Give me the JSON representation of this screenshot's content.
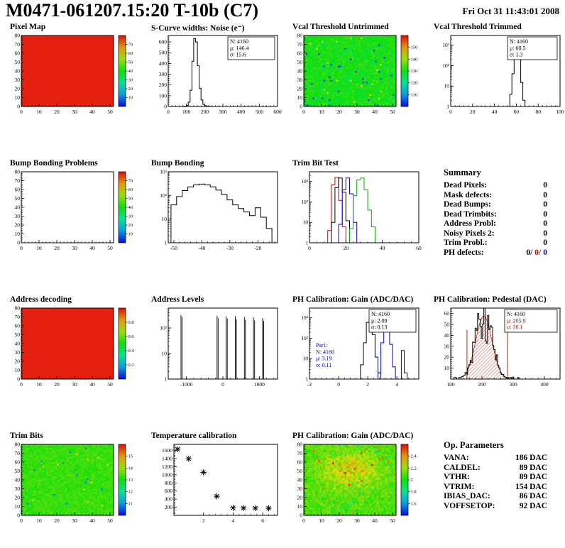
{
  "header": {
    "title": "M0471-061207.15:20 T-10b (C7)",
    "date": "Fri Oct 31 11:43:01 2008"
  },
  "summary_panel": {
    "title": "Summary",
    "rows": [
      {
        "label": "Dead Pixels:",
        "value": "0"
      },
      {
        "label": "Mask defects:",
        "value": "0"
      },
      {
        "label": "Dead Bumps:",
        "value": "0"
      },
      {
        "label": "Dead Trimbits:",
        "value": "0"
      },
      {
        "label": "Address Probl:",
        "value": "0"
      },
      {
        "label": "Noisy Pixels 2:",
        "value": "0"
      },
      {
        "label": "Trim Probl.:",
        "value": "0"
      }
    ],
    "ph_defects": {
      "label": "PH defects:",
      "parts": [
        {
          "text": "0/",
          "color": "#000000"
        },
        {
          "text": "0/",
          "color": "#cc0000"
        },
        {
          "text": "0",
          "color": "#0000cc"
        }
      ]
    }
  },
  "op_params_panel": {
    "title": "Op. Parameters",
    "rows": [
      {
        "label": "VANA:",
        "value": "186 DAC"
      },
      {
        "label": "CALDEL:",
        "value": "89 DAC"
      },
      {
        "label": "VTHR:",
        "value": "89 DAC"
      },
      {
        "label": "VTRIM:",
        "value": "154 DAC"
      },
      {
        "label": "IBIAS_DAC:",
        "value": "86 DAC"
      },
      {
        "label": "VOFFSETOP:",
        "value": "92 DAC"
      }
    ]
  },
  "chart_data": [
    {
      "id": "pixel_map",
      "title": "Pixel Map",
      "type": "heatmap",
      "fill": "solid",
      "color": "#e52010",
      "x_range": [
        0,
        52
      ],
      "x_ticks": [
        0,
        10,
        20,
        30,
        40,
        50
      ],
      "y_range": [
        0,
        80
      ],
      "y_ticks": [
        0,
        10,
        20,
        30,
        40,
        50,
        60,
        70,
        80
      ],
      "colorbar": {
        "ticks": [
          "10",
          "20",
          "30",
          "40",
          "50",
          "60",
          "70"
        ]
      }
    },
    {
      "id": "scurve",
      "title": "S-Curve widths: Noise (e⁻)",
      "type": "hist",
      "x_range": [
        0,
        600
      ],
      "x_ticks": [
        0,
        100,
        200,
        300,
        400,
        500,
        600
      ],
      "y_range": [
        0,
        660
      ],
      "y_ticks": [
        0,
        100,
        200,
        300,
        400,
        500,
        600
      ],
      "series": [
        {
          "color": "#000000",
          "points": [
            [
              85,
              1
            ],
            [
              95,
              3
            ],
            [
              105,
              10
            ],
            [
              115,
              40
            ],
            [
              125,
              150
            ],
            [
              135,
              420
            ],
            [
              145,
              630
            ],
            [
              155,
              600
            ],
            [
              165,
              380
            ],
            [
              175,
              170
            ],
            [
              185,
              60
            ],
            [
              195,
              20
            ],
            [
              205,
              7
            ],
            [
              215,
              2
            ],
            [
              225,
              1
            ]
          ]
        }
      ],
      "stats": [
        {
          "x": 120,
          "y": 6,
          "w": 66,
          "h": 32,
          "border": true,
          "lines": [
            {
              "t": "N: 4160"
            },
            {
              "t": "μ: 146.4"
            },
            {
              "t": "σ: 15.6"
            }
          ]
        }
      ]
    },
    {
      "id": "vcal_untrimmed",
      "title": "Vcal Threshold Untrimmed",
      "type": "heatmap",
      "fill": "noise",
      "noise": {
        "center": 0.5,
        "spread": 0.1,
        "low": 0.08,
        "low_frac": 0.02,
        "high": 0.72,
        "high_frac": 0.01,
        "cells": [
          52,
          40
        ]
      },
      "x_range": [
        0,
        52
      ],
      "x_ticks": [
        0,
        10,
        20,
        30,
        40,
        50
      ],
      "y_range": [
        0,
        80
      ],
      "y_ticks": [
        0,
        10,
        20,
        30,
        40,
        50,
        60,
        70,
        80
      ],
      "colorbar": {
        "ticks": [
          "110",
          "120",
          "130",
          "140",
          "150"
        ]
      }
    },
    {
      "id": "vcal_trimmed",
      "title": "Vcal Threshold Trimmed",
      "type": "hist",
      "ylog": true,
      "x_range": [
        0,
        100
      ],
      "x_ticks": [
        0,
        20,
        40,
        60,
        80,
        100
      ],
      "y_range": [
        1,
        3000
      ],
      "y_ticks_log": [
        [
          1,
          "1"
        ],
        [
          10,
          "10"
        ],
        [
          100,
          "10²"
        ],
        [
          1000,
          "10³"
        ]
      ],
      "series": [
        {
          "color": "#000000",
          "points": [
            [
              53,
              1
            ],
            [
              55,
              4
            ],
            [
              57,
              40
            ],
            [
              59,
              700
            ],
            [
              61,
              1800
            ],
            [
              63,
              300
            ],
            [
              65,
              15
            ],
            [
              67,
              2
            ]
          ]
        }
      ],
      "stats": [
        {
          "x": 116,
          "y": 6,
          "w": 70,
          "h": 32,
          "border": true,
          "lines": [
            {
              "t": "N: 4160"
            },
            {
              "t": "μ: 60.5"
            },
            {
              "t": "σ: 1.3"
            }
          ]
        }
      ]
    },
    {
      "id": "bbp",
      "title": "Bump Bonding Problems",
      "type": "heatmap",
      "fill": "empty",
      "x_range": [
        0,
        52
      ],
      "x_ticks": [
        0,
        10,
        20,
        30,
        40,
        50
      ],
      "y_range": [
        0,
        80
      ],
      "y_ticks": [
        0,
        10,
        20,
        30,
        40,
        50,
        60,
        70,
        80
      ],
      "colorbar": {
        "ticks": [
          "10",
          "20",
          "30",
          "40",
          "50",
          "60",
          "70"
        ]
      }
    },
    {
      "id": "bump",
      "title": "Bump Bonding",
      "type": "hist",
      "ylog": true,
      "x_range": [
        -52,
        -13
      ],
      "x_ticks": [
        -50,
        -40,
        -30,
        -20
      ],
      "y_range": [
        1,
        1000
      ],
      "y_ticks_log": [
        [
          1,
          "1"
        ],
        [
          10,
          "10"
        ],
        [
          100,
          "10²"
        ],
        [
          1000,
          "10³"
        ]
      ],
      "series": [
        {
          "color": "#000000",
          "points": [
            [
              -50,
              40
            ],
            [
              -48,
              90
            ],
            [
              -46,
              160
            ],
            [
              -44,
              230
            ],
            [
              -42,
              280
            ],
            [
              -40,
              300
            ],
            [
              -38,
              280
            ],
            [
              -36,
              230
            ],
            [
              -34,
              170
            ],
            [
              -32,
              110
            ],
            [
              -30,
              65
            ],
            [
              -28,
              40
            ],
            [
              -26,
              28
            ],
            [
              -24,
              20
            ],
            [
              -22,
              14
            ],
            [
              -20,
              30
            ],
            [
              -18,
              12
            ],
            [
              -16,
              4
            ]
          ]
        }
      ]
    },
    {
      "id": "trimbit",
      "title": "Trim Bit Test",
      "type": "hist",
      "ylog": true,
      "x_range": [
        0,
        60
      ],
      "x_ticks": [
        0,
        20,
        40,
        60
      ],
      "y_range": [
        1,
        3000
      ],
      "y_ticks_log": [
        [
          1,
          "1"
        ],
        [
          10,
          "10"
        ],
        [
          100,
          "10²"
        ],
        [
          1000,
          "10³"
        ]
      ],
      "series": [
        {
          "color": "#cc0000",
          "points": [
            [
              11,
              4
            ],
            [
              13,
              700
            ],
            [
              15,
              1600
            ],
            [
              17,
              120
            ],
            [
              19,
              6
            ]
          ]
        },
        {
          "color": "#000000",
          "points": [
            [
              13,
              10
            ],
            [
              15,
              500
            ],
            [
              17,
              1500
            ],
            [
              19,
              300
            ],
            [
              21,
              12
            ]
          ]
        },
        {
          "color": "#0000cc",
          "points": [
            [
              17,
              8
            ],
            [
              19,
              400
            ],
            [
              21,
              1500
            ],
            [
              23,
              250
            ],
            [
              25,
              10
            ]
          ]
        },
        {
          "color": "#00aa00",
          "points": [
            [
              23,
              5
            ],
            [
              25,
              200
            ],
            [
              27,
              1200
            ],
            [
              29,
              1500
            ],
            [
              31,
              400
            ],
            [
              33,
              40
            ],
            [
              35,
              6
            ]
          ]
        }
      ]
    },
    {
      "id": "addr_dec",
      "title": "Address decoding",
      "type": "heatmap",
      "fill": "solid",
      "color": "#e52010",
      "x_range": [
        0,
        52
      ],
      "x_ticks": [
        0,
        10,
        20,
        30,
        40,
        50
      ],
      "y_range": [
        0,
        80
      ],
      "y_ticks": [
        0,
        10,
        20,
        30,
        40,
        50,
        60,
        70,
        80
      ],
      "colorbar": {
        "ticks": [
          "0.2",
          "0.4",
          "0.6",
          "0.8"
        ]
      }
    },
    {
      "id": "addr_lvl",
      "title": "Address Levels",
      "type": "spikes",
      "ylog": true,
      "x_range": [
        -1500,
        1500
      ],
      "x_ticks": [
        -1000,
        0,
        1000
      ],
      "y_range": [
        1,
        600
      ],
      "y_ticks_log": [
        [
          1,
          "1"
        ],
        [
          10,
          "10"
        ],
        [
          100,
          "10²"
        ]
      ],
      "spikes": [
        [
          -1150,
          320
        ],
        [
          -1120,
          260
        ],
        [
          -160,
          300
        ],
        [
          -130,
          240
        ],
        [
          90,
          280
        ],
        [
          120,
          230
        ],
        [
          340,
          290
        ],
        [
          370,
          220
        ],
        [
          590,
          270
        ],
        [
          620,
          210
        ],
        [
          840,
          260
        ],
        [
          870,
          200
        ],
        [
          1090,
          240
        ],
        [
          1120,
          190
        ]
      ]
    },
    {
      "id": "ph_gain",
      "title": "PH Calibration: Gain (ADC/DAC)",
      "type": "hist",
      "ylog": true,
      "x_range": [
        -2,
        5.5
      ],
      "x_ticks": [
        -2,
        0,
        2,
        4
      ],
      "y_range": [
        1,
        3000
      ],
      "y_ticks_log": [
        [
          1,
          "1"
        ],
        [
          10,
          "10"
        ],
        [
          100,
          "10²"
        ],
        [
          1000,
          "10³"
        ]
      ],
      "series": [
        {
          "color": "#000000",
          "points": [
            [
              1.4,
              1
            ],
            [
              1.6,
              5
            ],
            [
              1.8,
              60
            ],
            [
              2.0,
              600
            ],
            [
              2.2,
              800
            ],
            [
              2.4,
              150
            ],
            [
              2.6,
              12
            ],
            [
              2.8,
              2
            ]
          ]
        },
        {
          "color": "#0000cc",
          "points": [
            [
              2.8,
              2
            ],
            [
              3.0,
              60
            ],
            [
              3.2,
              700
            ],
            [
              3.4,
              500
            ],
            [
              3.6,
              50
            ],
            [
              3.8,
              4
            ],
            [
              4.0,
              1
            ],
            [
              4.2,
              1
            ],
            [
              4.4,
              25
            ],
            [
              4.6,
              2
            ]
          ]
        }
      ],
      "stats": [
        {
          "x": 120,
          "y": 6,
          "w": 66,
          "h": 32,
          "border": true,
          "lines": [
            {
              "t": "N: 4160"
            },
            {
              "t": "μ: 2.09"
            },
            {
              "t": "σ: 0.13"
            }
          ]
        },
        {
          "x": 42,
          "y": 50,
          "border": false,
          "lines": [
            {
              "t": "Par1:",
              "color": "#0000cc"
            },
            {
              "t": "N: 4160",
              "color": "#0000cc"
            },
            {
              "t": "μ: 3.19",
              "color": "#0000cc"
            },
            {
              "t": "σ: 0.11",
              "color": "#0000cc"
            }
          ]
        }
      ]
    },
    {
      "id": "ph_ped",
      "title": "PH Calibration: Pedestal (DAC)",
      "type": "pedestal",
      "x_range": [
        100,
        450
      ],
      "x_ticks": [
        100,
        200,
        300,
        400
      ],
      "y_range": [
        0,
        65
      ],
      "y_ticks": [
        10,
        20,
        30,
        40,
        50,
        60
      ],
      "gauss": {
        "mu": 206,
        "sigma": 26,
        "amp": 58
      },
      "fit_range": [
        152,
        282
      ],
      "fit_line_height": 45,
      "stats": [
        {
          "x": 112,
          "y": 6,
          "w": 74,
          "h": 32,
          "border": true,
          "lines": [
            {
              "t": "N: 4160"
            },
            {
              "t": "μ: 205.9",
              "color": "#cc0000"
            },
            {
              "t": "σ: 26.1",
              "color": "#cc0000"
            }
          ]
        }
      ]
    },
    {
      "id": "trim_bits",
      "title": "Trim Bits",
      "type": "heatmap",
      "fill": "noise",
      "noise": {
        "center": 0.55,
        "spread": 0.06,
        "low": 0.15,
        "low_frac": 0.01,
        "high": 0.75,
        "high_frac": 0.005,
        "cells": [
          52,
          40
        ]
      },
      "x_range": [
        0,
        52
      ],
      "x_ticks": [
        0,
        10,
        20,
        30,
        40,
        50
      ],
      "y_range": [
        0,
        80
      ],
      "y_ticks": [
        0,
        10,
        20,
        30,
        40,
        50,
        60,
        70,
        80
      ],
      "colorbar": {
        "ticks": [
          "11",
          "12",
          "13",
          "14",
          "15"
        ]
      }
    },
    {
      "id": "tempcal",
      "title": "Temperature calibration",
      "type": "scatter",
      "left": 44,
      "x_range": [
        0,
        7
      ],
      "x_ticks": [
        2,
        4,
        6
      ],
      "y_range": [
        0,
        1750
      ],
      "y_ticks": [
        200,
        400,
        600,
        800,
        1000,
        1200,
        1400,
        1600
      ],
      "points": [
        [
          0.25,
          1630
        ],
        [
          1.0,
          1395
        ],
        [
          2.0,
          1060
        ],
        [
          2.9,
          470
        ],
        [
          4.0,
          185
        ],
        [
          4.7,
          180
        ],
        [
          5.5,
          178
        ],
        [
          6.4,
          175
        ]
      ]
    },
    {
      "id": "ph_gain_map",
      "title": "PH Calibration: Gain (ADC/DAC)",
      "type": "heatmap",
      "fill": "noise",
      "noise": {
        "center": 0.58,
        "spread": 0.09,
        "low": 0.3,
        "low_frac": 0.01,
        "high": 0.85,
        "high_frac": 0.01,
        "cells": [
          52,
          36
        ],
        "blob": {
          "cx": 0.5,
          "cy": 0.65,
          "amp": 0.2,
          "sx": 0.22,
          "sy": 0.18
        }
      },
      "x_range": [
        0,
        52
      ],
      "x_ticks": [
        0,
        10,
        20,
        30,
        40,
        50
      ],
      "y_range": [
        0,
        80
      ],
      "y_ticks": [
        0,
        10,
        20,
        30,
        40,
        50,
        60,
        70,
        80
      ],
      "colorbar": {
        "ticks": [
          "1.6",
          "1.8",
          "2",
          "2.2",
          "2.4"
        ]
      }
    }
  ]
}
